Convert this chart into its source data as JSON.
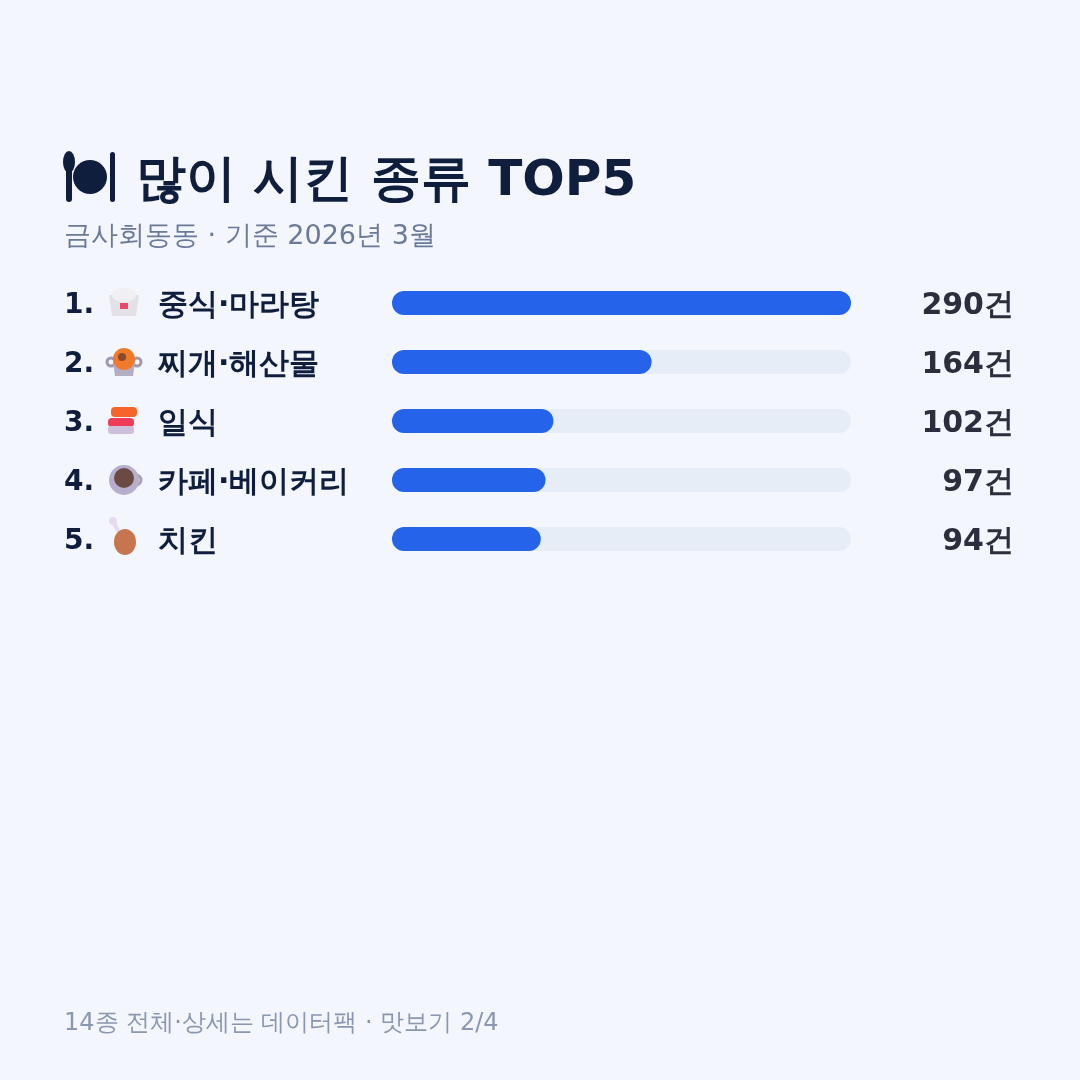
{
  "chart_data": {
    "type": "bar",
    "orientation": "horizontal",
    "title": "많이 시킨 종류 TOP5",
    "subtitle": "금사회동동 · 기준 2026년 3월",
    "categories": [
      "중식·마라탕",
      "찌개·해산물",
      "일식",
      "카페·베이커리",
      "치킨"
    ],
    "values": [
      290,
      164,
      102,
      97,
      94
    ],
    "value_labels": [
      "290건",
      "164건",
      "102건",
      "97건",
      "94건"
    ],
    "color": "#2563eb",
    "annotations": [
      "1.",
      "2.",
      "3.",
      "4.",
      "5.",
      "14종 전체·상세는 데이터팩 · 맛보기 2/4"
    ]
  }
}
